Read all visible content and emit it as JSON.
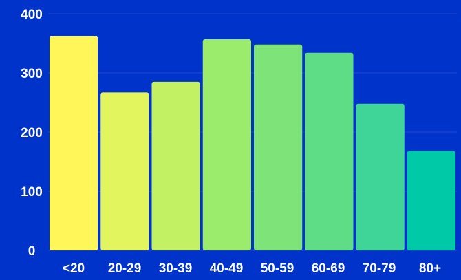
{
  "chart_data": {
    "type": "bar",
    "title": "",
    "xlabel": "",
    "ylabel": "",
    "categories": [
      "<20",
      "20-29",
      "30-39",
      "40-49",
      "50-59",
      "60-69",
      "70-79",
      "80+"
    ],
    "values": [
      362,
      267,
      285,
      357,
      348,
      334,
      248,
      168
    ],
    "ylim": [
      0,
      400
    ],
    "yticks": [
      "0",
      "100",
      "200",
      "300",
      "400"
    ],
    "grid": true,
    "legend": "none",
    "colors": {
      "background": "#0033c9",
      "gridline": "#2246cf",
      "text": "#ffffff",
      "bars": [
        "#fff75a",
        "#e2f55e",
        "#c2f163",
        "#9beb6c",
        "#7ee47a",
        "#5fdd86",
        "#3fd598",
        "#00c9a7"
      ]
    }
  }
}
